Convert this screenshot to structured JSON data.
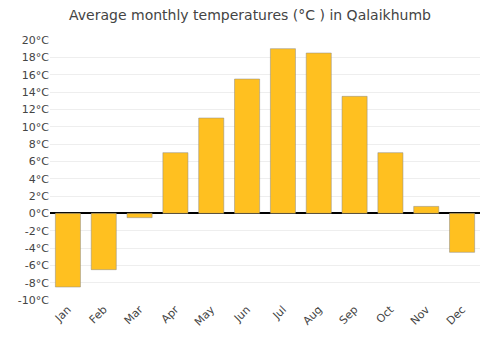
{
  "chart_data": {
    "type": "bar",
    "title": "Average monthly temperatures (°C ) in Qalaikhumb",
    "categories": [
      "Jan",
      "Feb",
      "Mar",
      "Apr",
      "May",
      "Jun",
      "Jul",
      "Aug",
      "Sep",
      "Oct",
      "Nov",
      "Dec"
    ],
    "values": [
      -8.5,
      -6.5,
      -0.5,
      7.0,
      11.0,
      15.5,
      19.0,
      18.5,
      13.5,
      7.0,
      0.8,
      -4.5
    ],
    "color": "#FFC020",
    "ylim": [
      -10,
      20
    ],
    "yticks": [
      {
        "value": -10,
        "label": "-10°C"
      },
      {
        "value": -8,
        "label": "-8°C"
      },
      {
        "value": -6,
        "label": "-6°C"
      },
      {
        "value": -4,
        "label": "-4°C"
      },
      {
        "value": -2,
        "label": "-2°C"
      },
      {
        "value": 0,
        "label": "0°C"
      },
      {
        "value": 2,
        "label": "2°C"
      },
      {
        "value": 4,
        "label": "4°C"
      },
      {
        "value": 6,
        "label": "6°C"
      },
      {
        "value": 8,
        "label": "8°C"
      },
      {
        "value": 10,
        "label": "10°C"
      },
      {
        "value": 12,
        "label": "12°C"
      },
      {
        "value": 14,
        "label": "14°C"
      },
      {
        "value": 16,
        "label": "16°C"
      },
      {
        "value": 18,
        "label": "18°C"
      },
      {
        "value": 20,
        "label": "20°C"
      }
    ],
    "grid": true
  }
}
